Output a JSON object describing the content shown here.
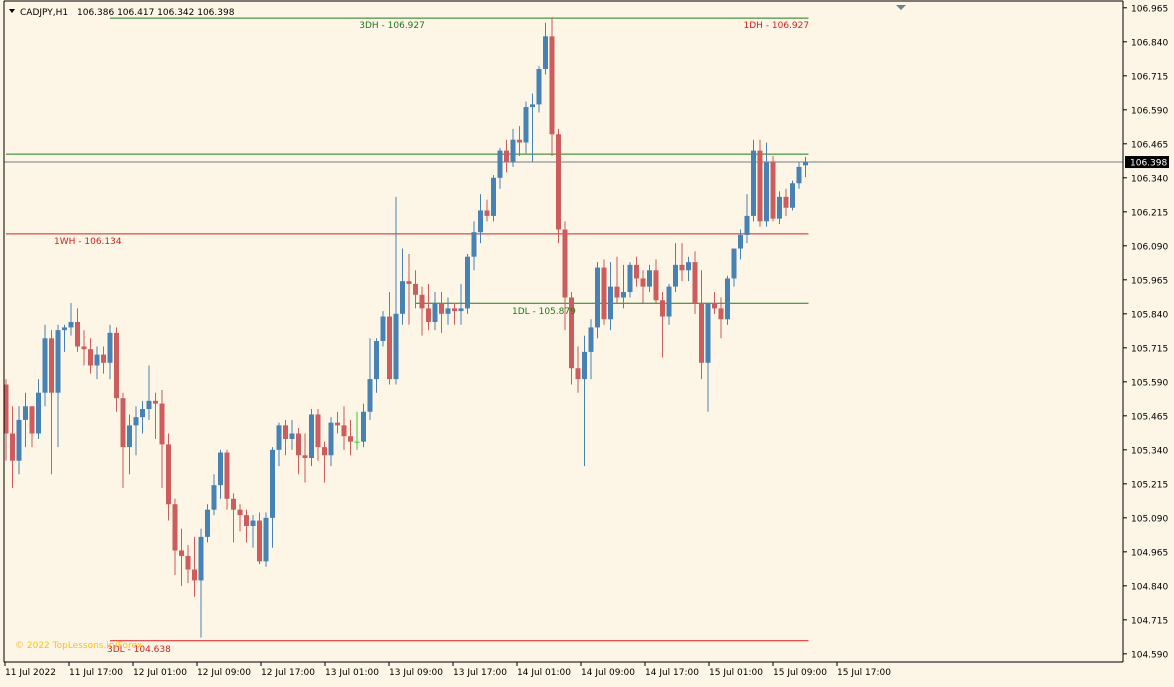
{
  "header": {
    "symbol": "CADJPY,H1",
    "ohlc": "106.386 106.417 106.342 106.398"
  },
  "watermark": "© 2022 TopLessons.in/Forex",
  "colors": {
    "background": "#fdf5e6",
    "bull": "#4682b4",
    "bear": "#cd5c5c",
    "doji": "#32cd32",
    "green_line": "#1e7a1e",
    "red_line": "#d42020",
    "watermark": "#ffc20e",
    "current_price_bg": "#000000",
    "current_price_line": "#708090"
  },
  "chart_data": {
    "type": "candlestick",
    "ylim": [
      104.56,
      106.99
    ],
    "y_ticks": [
      "106.965",
      "106.840",
      "106.715",
      "106.590",
      "106.465",
      "106.340",
      "106.215",
      "106.090",
      "105.965",
      "105.840",
      "105.715",
      "105.590",
      "105.465",
      "105.340",
      "105.215",
      "105.090",
      "104.965",
      "104.840",
      "104.715",
      "104.590"
    ],
    "x_labels": [
      "11 Jul 2022",
      "11 Jul 17:00",
      "12 Jul 01:00",
      "12 Jul 09:00",
      "12 Jul 17:00",
      "13 Jul 01:00",
      "13 Jul 09:00",
      "13 Jul 17:00",
      "14 Jul 01:00",
      "14 Jul 09:00",
      "14 Jul 17:00",
      "15 Jul 01:00",
      "15 Jul 09:00",
      "15 Jul 17:00"
    ],
    "current_price": "106.398",
    "levels": [
      {
        "label": "3DH - 106.927",
        "value": 106.927,
        "color": "green",
        "start_bar": 16,
        "label_pos": "mid"
      },
      {
        "label": "1DH - 106.927",
        "value": 106.927,
        "color": "red_text",
        "start_bar": 16,
        "label_pos": "right"
      },
      {
        "label": "1WH - 106.134",
        "value": 106.134,
        "color": "red",
        "start_bar": 0,
        "label_pos": "left"
      },
      {
        "label": "1DL - 105.879",
        "value": 105.879,
        "color": "green",
        "start_bar": 63,
        "label_pos": "mid"
      },
      {
        "label": "3DL - 104.638",
        "value": 104.638,
        "color": "red",
        "start_bar": 16,
        "label_pos": "left"
      }
    ],
    "extra_lines": [
      {
        "value": 106.427,
        "color": "green",
        "start_bar": 0
      }
    ],
    "ohlc": [
      [
        105.58,
        105.6,
        105.3,
        105.4
      ],
      [
        105.4,
        105.5,
        105.2,
        105.3
      ],
      [
        105.3,
        105.5,
        105.25,
        105.45
      ],
      [
        105.45,
        105.55,
        105.35,
        105.5
      ],
      [
        105.5,
        105.5,
        105.35,
        105.4
      ],
      [
        105.4,
        105.6,
        105.38,
        105.55
      ],
      [
        105.55,
        105.8,
        105.5,
        105.75
      ],
      [
        105.75,
        105.78,
        105.25,
        105.55
      ],
      [
        105.55,
        105.8,
        105.35,
        105.78
      ],
      [
        105.78,
        105.8,
        105.7,
        105.79
      ],
      [
        105.79,
        105.88,
        105.76,
        105.81
      ],
      [
        105.81,
        105.86,
        105.7,
        105.72
      ],
      [
        105.72,
        105.78,
        105.65,
        105.71
      ],
      [
        105.71,
        105.75,
        105.62,
        105.65
      ],
      [
        105.65,
        105.72,
        105.6,
        105.69
      ],
      [
        105.69,
        105.72,
        105.62,
        105.66
      ],
      [
        105.66,
        105.8,
        105.6,
        105.77
      ],
      [
        105.77,
        105.79,
        105.48,
        105.53
      ],
      [
        105.53,
        105.55,
        105.2,
        105.35
      ],
      [
        105.35,
        105.47,
        105.25,
        105.43
      ],
      [
        105.43,
        105.5,
        105.32,
        105.46
      ],
      [
        105.46,
        105.52,
        105.4,
        105.49
      ],
      [
        105.49,
        105.65,
        105.45,
        105.52
      ],
      [
        105.52,
        105.55,
        105.38,
        105.51
      ],
      [
        105.51,
        105.56,
        105.2,
        105.36
      ],
      [
        105.36,
        105.4,
        105.08,
        105.14
      ],
      [
        105.14,
        105.16,
        104.88,
        104.97
      ],
      [
        104.97,
        105.05,
        104.84,
        104.95
      ],
      [
        104.95,
        104.99,
        104.85,
        104.9
      ],
      [
        104.9,
        105.02,
        104.8,
        104.86
      ],
      [
        104.86,
        105.05,
        104.65,
        105.02
      ],
      [
        105.02,
        105.14,
        105.0,
        105.12
      ],
      [
        105.12,
        105.25,
        105.1,
        105.21
      ],
      [
        105.21,
        105.34,
        105.16,
        105.33
      ],
      [
        105.33,
        105.34,
        105.12,
        105.16
      ],
      [
        105.16,
        105.18,
        105.0,
        105.12
      ],
      [
        105.12,
        105.14,
        105.04,
        105.1
      ],
      [
        105.1,
        105.12,
        105.0,
        105.06
      ],
      [
        105.06,
        105.1,
        104.98,
        105.08
      ],
      [
        105.08,
        105.11,
        104.92,
        104.93
      ],
      [
        104.93,
        105.11,
        104.91,
        105.09
      ],
      [
        105.09,
        105.35,
        104.98,
        105.34
      ],
      [
        105.34,
        105.44,
        105.28,
        105.43
      ],
      [
        105.43,
        105.45,
        105.32,
        105.38
      ],
      [
        105.38,
        105.45,
        105.34,
        105.4
      ],
      [
        105.4,
        105.42,
        105.25,
        105.32
      ],
      [
        105.32,
        105.4,
        105.22,
        105.31
      ],
      [
        105.31,
        105.49,
        105.28,
        105.47
      ],
      [
        105.47,
        105.49,
        105.3,
        105.35
      ],
      [
        105.35,
        105.37,
        105.22,
        105.32
      ],
      [
        105.32,
        105.46,
        105.28,
        105.44
      ],
      [
        105.44,
        105.48,
        105.4,
        105.43
      ],
      [
        105.43,
        105.5,
        105.34,
        105.39
      ],
      [
        105.39,
        105.45,
        105.32,
        105.37
      ],
      [
        105.37,
        105.48,
        105.34,
        105.37
      ],
      [
        105.37,
        105.51,
        105.35,
        105.48
      ],
      [
        105.48,
        105.75,
        105.45,
        105.6
      ],
      [
        105.6,
        105.75,
        105.55,
        105.74
      ],
      [
        105.74,
        105.85,
        105.72,
        105.83
      ],
      [
        105.83,
        105.92,
        105.58,
        105.6
      ],
      [
        105.6,
        106.27,
        105.58,
        105.84
      ],
      [
        105.84,
        106.08,
        105.8,
        105.96
      ],
      [
        105.96,
        106.06,
        105.8,
        105.95
      ],
      [
        105.95,
        106.0,
        105.86,
        105.91
      ],
      [
        105.91,
        105.94,
        105.76,
        105.86
      ],
      [
        105.86,
        105.95,
        105.78,
        105.81
      ],
      [
        105.81,
        105.92,
        105.78,
        105.88
      ],
      [
        105.88,
        105.92,
        105.77,
        105.84
      ],
      [
        105.84,
        105.9,
        105.8,
        105.86
      ],
      [
        105.86,
        105.88,
        105.8,
        105.85
      ],
      [
        105.85,
        105.95,
        105.8,
        105.86
      ],
      [
        105.86,
        106.06,
        105.84,
        106.05
      ],
      [
        106.05,
        106.18,
        106.0,
        106.14
      ],
      [
        106.14,
        106.28,
        106.1,
        106.22
      ],
      [
        106.22,
        106.26,
        106.18,
        106.2
      ],
      [
        106.2,
        106.35,
        106.18,
        106.34
      ],
      [
        106.34,
        106.45,
        106.3,
        106.44
      ],
      [
        106.44,
        106.48,
        106.36,
        106.4
      ],
      [
        106.4,
        106.52,
        106.38,
        106.48
      ],
      [
        106.48,
        106.53,
        106.42,
        106.47
      ],
      [
        106.47,
        106.62,
        106.43,
        106.6
      ],
      [
        106.6,
        106.65,
        106.4,
        106.61
      ],
      [
        106.61,
        106.75,
        106.58,
        106.74
      ],
      [
        106.74,
        106.91,
        106.72,
        106.86
      ],
      [
        106.86,
        106.93,
        106.42,
        106.5
      ],
      [
        106.5,
        106.52,
        106.1,
        106.15
      ],
      [
        106.15,
        106.18,
        105.78,
        105.9
      ],
      [
        105.9,
        105.92,
        105.58,
        105.64
      ],
      [
        105.64,
        105.72,
        105.55,
        105.6
      ],
      [
        105.6,
        105.76,
        105.28,
        105.7
      ],
      [
        105.7,
        105.82,
        105.6,
        105.79
      ],
      [
        105.79,
        106.03,
        105.75,
        106.01
      ],
      [
        106.01,
        106.04,
        105.8,
        105.82
      ],
      [
        105.82,
        106.03,
        105.78,
        105.94
      ],
      [
        105.94,
        106.05,
        105.88,
        105.9
      ],
      [
        105.9,
        106.02,
        105.86,
        105.92
      ],
      [
        105.92,
        106.03,
        105.9,
        106.02
      ],
      [
        106.02,
        106.05,
        105.94,
        105.97
      ],
      [
        105.97,
        106.0,
        105.88,
        105.94
      ],
      [
        105.94,
        106.02,
        105.92,
        106.0
      ],
      [
        106.0,
        106.04,
        105.88,
        105.89
      ],
      [
        105.89,
        105.92,
        105.68,
        105.83
      ],
      [
        105.83,
        105.95,
        105.8,
        105.94
      ],
      [
        105.94,
        106.1,
        105.92,
        106.02
      ],
      [
        106.02,
        106.1,
        105.96,
        106.0
      ],
      [
        106.0,
        106.05,
        105.96,
        106.03
      ],
      [
        106.03,
        106.07,
        105.84,
        105.88
      ],
      [
        105.88,
        106.0,
        105.6,
        105.66
      ],
      [
        105.66,
        105.88,
        105.48,
        105.88
      ],
      [
        105.88,
        105.92,
        105.84,
        105.86
      ],
      [
        105.86,
        105.9,
        105.75,
        105.82
      ],
      [
        105.82,
        105.98,
        105.8,
        105.97
      ],
      [
        105.97,
        106.08,
        105.94,
        106.08
      ],
      [
        106.08,
        106.15,
        106.04,
        106.13
      ],
      [
        106.13,
        106.28,
        106.1,
        106.2
      ],
      [
        106.2,
        106.48,
        106.18,
        106.44
      ],
      [
        106.44,
        106.48,
        106.16,
        106.18
      ],
      [
        106.18,
        106.47,
        106.16,
        106.4
      ],
      [
        106.4,
        106.42,
        106.18,
        106.19
      ],
      [
        106.19,
        106.29,
        106.17,
        106.27
      ],
      [
        106.27,
        106.3,
        106.2,
        106.23
      ],
      [
        106.23,
        106.33,
        106.22,
        106.32
      ],
      [
        106.32,
        106.4,
        106.3,
        106.38
      ],
      [
        106.386,
        106.417,
        106.342,
        106.398
      ]
    ]
  }
}
